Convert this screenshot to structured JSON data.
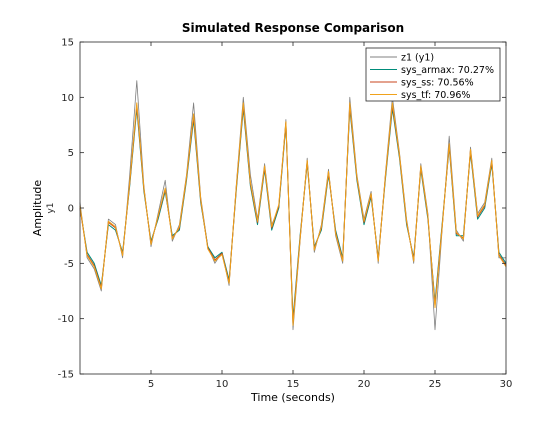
{
  "chart_data": {
    "type": "line",
    "title": "Simulated Response Comparison",
    "xlabel": "Time (seconds)",
    "ylabel": "Amplitude",
    "channel_label": "y1",
    "xlim": [
      0,
      30
    ],
    "ylim": [
      -15,
      15
    ],
    "xticks": [
      5,
      10,
      15,
      20,
      25,
      30
    ],
    "yticks": [
      -15,
      -10,
      -5,
      0,
      5,
      10,
      15
    ],
    "grid": false,
    "legend_position": "top-right",
    "legend": [
      "z1 (y1)",
      "sys_armax: 70.27%",
      "sys_ss: 70.56%",
      "sys_tf: 70.96%"
    ],
    "colors": {
      "measured": "#808080",
      "sys_armax": "#008c7a",
      "sys_ss": "#c8441e",
      "sys_tf": "#f0a21c",
      "axes": "#262626",
      "background": "#ffffff"
    },
    "x": [
      0.0,
      0.5,
      1.0,
      1.5,
      2.0,
      2.5,
      3.0,
      3.5,
      4.0,
      4.5,
      5.0,
      5.5,
      6.0,
      6.5,
      7.0,
      7.5,
      8.0,
      8.5,
      9.0,
      9.5,
      10.0,
      10.5,
      11.0,
      11.5,
      12.0,
      12.5,
      13.0,
      13.5,
      14.0,
      14.5,
      15.0,
      15.5,
      16.0,
      16.5,
      17.0,
      17.5,
      18.0,
      18.5,
      19.0,
      19.5,
      20.0,
      20.5,
      21.0,
      21.5,
      22.0,
      22.5,
      23.0,
      23.5,
      24.0,
      24.5,
      25.0,
      25.5,
      26.0,
      26.5,
      27.0,
      27.5,
      28.0,
      28.5,
      29.0,
      29.5,
      30.0
    ],
    "series": [
      {
        "name": "z1 (y1)",
        "values": [
          0.5,
          -4.5,
          -5.5,
          -7.5,
          -1.0,
          -1.5,
          -4.5,
          3.0,
          11.5,
          2.0,
          -3.5,
          -0.5,
          2.5,
          -3.0,
          -1.5,
          3.0,
          9.5,
          1.0,
          -3.5,
          -5.0,
          -4.0,
          -7.0,
          2.0,
          10.0,
          3.0,
          -1.0,
          4.0,
          -1.5,
          0.0,
          8.0,
          -11.0,
          -3.0,
          4.5,
          -4.0,
          -1.5,
          3.5,
          -2.5,
          -5.0,
          10.0,
          3.0,
          -1.0,
          1.5,
          -5.0,
          3.0,
          10.0,
          5.0,
          -1.0,
          -5.0,
          4.0,
          -0.5,
          -11.0,
          -2.0,
          6.5,
          -2.0,
          -3.0,
          5.5,
          -0.5,
          0.5,
          4.5,
          -4.5,
          -4.5
        ]
      },
      {
        "name": "sys_armax: 70.27%",
        "values": [
          0.0,
          -4.0,
          -5.0,
          -7.0,
          -1.5,
          -2.0,
          -4.0,
          2.0,
          9.0,
          1.5,
          -3.0,
          -1.0,
          1.5,
          -2.5,
          -2.0,
          2.5,
          8.0,
          0.5,
          -3.5,
          -4.5,
          -4.0,
          -6.5,
          1.5,
          9.0,
          2.0,
          -1.5,
          3.5,
          -2.0,
          0.0,
          7.5,
          -10.0,
          -2.5,
          4.0,
          -3.5,
          -2.0,
          3.0,
          -2.0,
          -4.5,
          9.0,
          2.5,
          -1.5,
          1.0,
          -4.5,
          2.5,
          9.0,
          4.5,
          -1.5,
          -4.5,
          3.5,
          -1.0,
          -8.5,
          -1.5,
          5.5,
          -2.5,
          -2.5,
          5.0,
          -1.0,
          0.0,
          4.0,
          -4.0,
          -5.0
        ]
      },
      {
        "name": "sys_ss: 70.56%",
        "values": [
          0.0,
          -4.2,
          -5.2,
          -7.2,
          -1.3,
          -1.8,
          -4.2,
          2.2,
          9.3,
          1.7,
          -3.2,
          -0.8,
          1.7,
          -2.7,
          -1.8,
          2.7,
          8.3,
          0.7,
          -3.6,
          -4.7,
          -4.1,
          -6.7,
          1.7,
          9.3,
          2.2,
          -1.3,
          3.7,
          -1.8,
          0.2,
          7.7,
          -10.4,
          -2.7,
          4.2,
          -3.7,
          -1.8,
          3.2,
          -2.2,
          -4.7,
          9.3,
          2.7,
          -1.3,
          1.2,
          -4.7,
          2.7,
          9.3,
          4.7,
          -1.3,
          -4.7,
          3.7,
          -0.8,
          -8.8,
          -1.7,
          5.7,
          -2.3,
          -2.7,
          5.2,
          -0.8,
          0.2,
          4.2,
          -4.2,
          -5.2
        ]
      },
      {
        "name": "sys_tf: 70.96%",
        "values": [
          0.2,
          -4.3,
          -5.3,
          -7.3,
          -1.2,
          -1.7,
          -4.3,
          2.3,
          9.5,
          1.8,
          -3.3,
          -0.7,
          1.8,
          -2.8,
          -1.7,
          2.8,
          8.5,
          0.8,
          -3.7,
          -4.8,
          -4.2,
          -6.8,
          1.8,
          9.5,
          2.3,
          -1.2,
          3.8,
          -1.7,
          0.3,
          7.8,
          -10.6,
          -2.8,
          4.3,
          -3.8,
          -1.7,
          3.3,
          -2.3,
          -4.8,
          9.5,
          2.8,
          -1.2,
          1.3,
          -4.8,
          2.8,
          9.5,
          4.8,
          -1.2,
          -4.8,
          3.8,
          -0.7,
          -9.0,
          -1.8,
          5.8,
          -2.2,
          -2.8,
          5.3,
          -0.7,
          0.3,
          4.3,
          -4.3,
          -5.3
        ]
      }
    ]
  }
}
